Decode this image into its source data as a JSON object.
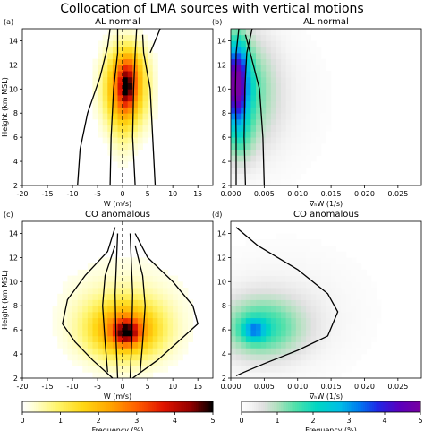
{
  "figure_title": "Collocation of LMA sources with vertical motions",
  "chart_data": [
    {
      "type": "heatmap",
      "panel_label": "(a)",
      "title": "AL normal",
      "xlabel": "W (m/s)",
      "ylabel": "Height (km MSL)",
      "xlim": [
        -20,
        18
      ],
      "ylim": [
        2,
        15
      ],
      "xticks": [
        -20,
        -15,
        -10,
        -5,
        0,
        5,
        10,
        15
      ],
      "yticks": [
        2,
        4,
        6,
        8,
        10,
        12,
        14
      ],
      "colormap": "hot_r",
      "bin_x": 1,
      "bin_y": 0.5,
      "zero_line": true,
      "blobs": [
        {
          "cx": 0.5,
          "cy": 10.0,
          "sx": 2.8,
          "sy": 2.2,
          "amp": 3.2
        },
        {
          "cx": 0.8,
          "cy": 10.2,
          "sx": 0.8,
          "sy": 0.9,
          "amp": 2.3
        },
        {
          "cx": 1.5,
          "cy": 12.0,
          "sx": 2.0,
          "sy": 1.2,
          "amp": 0.8
        },
        {
          "cx": 0.0,
          "cy": 6.5,
          "sx": 1.5,
          "sy": 2.0,
          "amp": 0.3
        }
      ],
      "cutoff": 0.15,
      "contours": [
        [
          [
            -9,
            2
          ],
          [
            -8.5,
            5
          ],
          [
            -7,
            8
          ],
          [
            -4.5,
            11
          ],
          [
            -3,
            13.5
          ],
          [
            -2.5,
            15
          ]
        ],
        [
          [
            -2.5,
            2
          ],
          [
            -2.3,
            6
          ],
          [
            -1.8,
            10
          ],
          [
            -1,
            13
          ],
          [
            -1,
            15
          ]
        ],
        [
          [
            2.5,
            2
          ],
          [
            2,
            6
          ],
          [
            2.2,
            10
          ],
          [
            2.5,
            13
          ],
          [
            2.8,
            15
          ]
        ],
        [
          [
            6.5,
            2
          ],
          [
            6,
            6
          ],
          [
            5.5,
            10
          ],
          [
            4.2,
            13
          ],
          [
            4,
            14.5
          ]
        ],
        [
          [
            7.5,
            15
          ],
          [
            6.5,
            14
          ],
          [
            5.5,
            13
          ]
        ]
      ]
    },
    {
      "type": "heatmap",
      "panel_label": "(b)",
      "title": "AL normal",
      "xlabel": "∇ₕW (1/s)",
      "ylabel": "",
      "xlim": [
        0,
        0.0285
      ],
      "ylim": [
        2,
        15
      ],
      "xticks": [
        0.0,
        0.005,
        0.01,
        0.015,
        0.02,
        0.025
      ],
      "xtick_labels": [
        "0.000",
        "0.005",
        "0.010",
        "0.015",
        "0.020",
        "0.025"
      ],
      "yticks": [
        2,
        4,
        6,
        8,
        10,
        12,
        14
      ],
      "colormap": "nipy_spectral",
      "bin_x": 0.00075,
      "bin_y": 0.5,
      "zero_line": false,
      "blobs": [
        {
          "cx": 0.0008,
          "cy": 10.5,
          "sx": 0.0013,
          "sy": 2.5,
          "amp": 4.0
        },
        {
          "cx": 0.0025,
          "cy": 10.0,
          "sx": 0.003,
          "sy": 3.2,
          "amp": 1.2
        },
        {
          "cx": 0.004,
          "cy": 9.0,
          "sx": 0.006,
          "sy": 4.0,
          "amp": 0.35
        },
        {
          "cx": 0.0015,
          "cy": 5.5,
          "sx": 0.0015,
          "sy": 1.5,
          "amp": 0.6
        }
      ],
      "cutoff": 0.06,
      "contours": [
        [
          [
            0.0008,
            2
          ],
          [
            0.0008,
            6
          ],
          [
            0.0007,
            10
          ],
          [
            0.0008,
            13
          ],
          [
            0.0012,
            15
          ]
        ],
        [
          [
            0.0022,
            2
          ],
          [
            0.002,
            6
          ],
          [
            0.0021,
            10
          ],
          [
            0.0024,
            13
          ],
          [
            0.0032,
            15
          ]
        ],
        [
          [
            0.005,
            2
          ],
          [
            0.0048,
            6
          ],
          [
            0.0043,
            10
          ],
          [
            0.003,
            12.8
          ],
          [
            0.0022,
            14.5
          ]
        ]
      ]
    },
    {
      "type": "heatmap",
      "panel_label": "(c)",
      "title": "CO anomalous",
      "xlabel": "W (m/s)",
      "ylabel": "Height (km MSL)",
      "xlim": [
        -20,
        18
      ],
      "ylim": [
        2,
        15
      ],
      "xticks": [
        -20,
        -15,
        -10,
        -5,
        0,
        5,
        10,
        15
      ],
      "yticks": [
        2,
        4,
        6,
        8,
        10,
        12,
        14
      ],
      "colormap": "hot_r",
      "bin_x": 1,
      "bin_y": 0.5,
      "zero_line": true,
      "blobs": [
        {
          "cx": 0.5,
          "cy": 6.0,
          "sx": 5.0,
          "sy": 1.6,
          "amp": 2.5
        },
        {
          "cx": 0.8,
          "cy": 5.8,
          "sx": 1.5,
          "sy": 0.6,
          "amp": 2.6
        },
        {
          "cx": 0.0,
          "cy": 7.5,
          "sx": 8.0,
          "sy": 2.8,
          "amp": 0.55
        }
      ],
      "cutoff": 0.15,
      "contours": [
        [
          [
            -2,
            2
          ],
          [
            -6,
            3.5
          ],
          [
            -9.5,
            5
          ],
          [
            -12,
            6.5
          ],
          [
            -11,
            8.5
          ],
          [
            -7.5,
            10.5
          ],
          [
            -3,
            12.5
          ],
          [
            -1.5,
            14.5
          ]
        ],
        [
          [
            2,
            2
          ],
          [
            7,
            3.5
          ],
          [
            11,
            5
          ],
          [
            15,
            6.5
          ],
          [
            14,
            8
          ],
          [
            10,
            10
          ],
          [
            5,
            12
          ],
          [
            2.5,
            14
          ]
        ],
        [
          [
            -3,
            2.5
          ],
          [
            -3.5,
            5
          ],
          [
            -4,
            8
          ],
          [
            -3.5,
            10.5
          ],
          [
            -1.5,
            13
          ]
        ],
        [
          [
            3.5,
            2.5
          ],
          [
            4,
            5
          ],
          [
            4.5,
            8
          ],
          [
            4,
            10.5
          ],
          [
            2.5,
            13
          ]
        ],
        [
          [
            -1,
            2
          ],
          [
            -1.3,
            5
          ],
          [
            -1.5,
            9
          ],
          [
            -1,
            14
          ]
        ],
        [
          [
            1.5,
            2
          ],
          [
            1.8,
            5
          ],
          [
            2,
            9
          ],
          [
            1.5,
            14
          ]
        ]
      ]
    },
    {
      "type": "heatmap",
      "panel_label": "(d)",
      "title": "CO anomalous",
      "xlabel": "∇ₕW (1/s)",
      "ylabel": "",
      "xlim": [
        0,
        0.0285
      ],
      "ylim": [
        2,
        15
      ],
      "xticks": [
        0.0,
        0.005,
        0.01,
        0.015,
        0.02,
        0.025
      ],
      "xtick_labels": [
        "0.000",
        "0.005",
        "0.010",
        "0.015",
        "0.020",
        "0.025"
      ],
      "yticks": [
        2,
        4,
        6,
        8,
        10,
        12,
        14
      ],
      "colormap": "nipy_spectral",
      "bin_x": 0.00075,
      "bin_y": 0.5,
      "zero_line": false,
      "blobs": [
        {
          "cx": 0.0045,
          "cy": 6.2,
          "sx": 0.0045,
          "sy": 1.8,
          "amp": 1.6
        },
        {
          "cx": 0.0035,
          "cy": 6.0,
          "sx": 0.0012,
          "sy": 0.6,
          "amp": 1.6
        },
        {
          "cx": 0.008,
          "cy": 7.5,
          "sx": 0.008,
          "sy": 3.5,
          "amp": 0.3
        }
      ],
      "cutoff": 0.06,
      "contours": [
        [
          [
            0.0008,
            14.5
          ],
          [
            0.004,
            13
          ],
          [
            0.01,
            11
          ],
          [
            0.0145,
            9
          ],
          [
            0.016,
            7.5
          ],
          [
            0.0145,
            5.5
          ],
          [
            0.01,
            4.3
          ],
          [
            0.005,
            3.2
          ],
          [
            0.002,
            2.5
          ],
          [
            0.0008,
            2.2
          ]
        ]
      ]
    }
  ],
  "colorbars": [
    {
      "colormap": "hot_r",
      "range": [
        0,
        5
      ],
      "ticks": [
        0,
        1,
        2,
        3,
        4,
        5
      ],
      "label": "Frequency (%)"
    },
    {
      "colormap": "nipy_spectral",
      "range": [
        0,
        5
      ],
      "ticks": [
        0,
        1,
        2,
        3,
        4,
        5
      ],
      "label": "Frequency (%)"
    }
  ]
}
